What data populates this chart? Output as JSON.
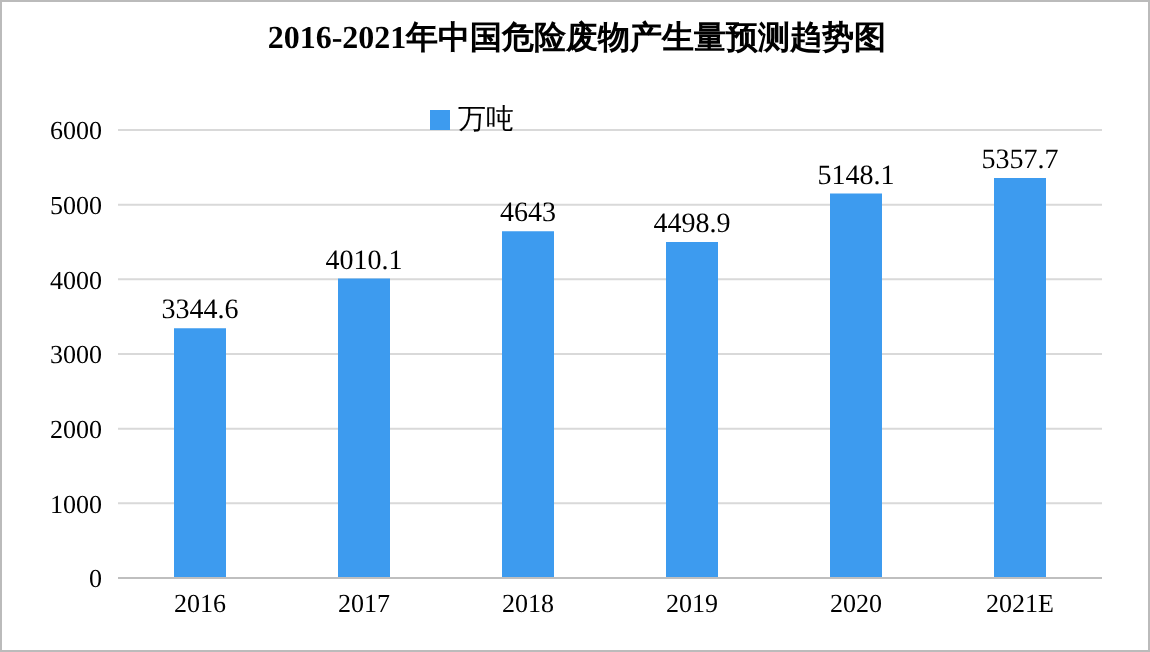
{
  "chart_data": {
    "type": "bar",
    "title": "2016-2021年中国危险废物产生量预测趋势图",
    "categories": [
      "2016",
      "2017",
      "2018",
      "2019",
      "2020",
      "2021E"
    ],
    "series": [
      {
        "name": "万吨",
        "color": "#3d9bef",
        "values": [
          3344.6,
          4010.1,
          4643,
          4498.9,
          5148.1,
          5357.7
        ]
      }
    ],
    "ylim": [
      0,
      6000
    ],
    "yticks": [
      0,
      1000,
      2000,
      3000,
      4000,
      5000,
      6000
    ],
    "grid": "y",
    "legend": "top",
    "data_labels": true
  }
}
